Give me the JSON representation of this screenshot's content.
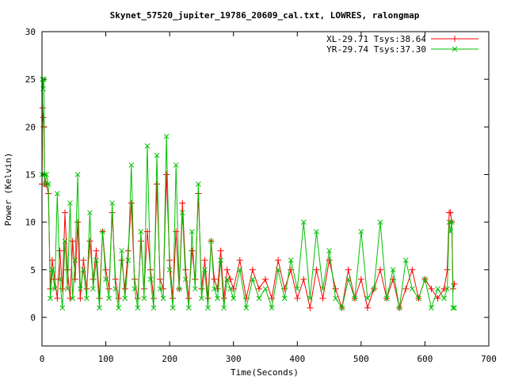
{
  "chart_data": {
    "type": "line",
    "title": "Skynet_57520_jupiter_19786_20609_cal.txt, LOWRES, ralongmap",
    "xlabel": "Time(Seconds)",
    "ylabel": "Power (Kelvin)",
    "xlim": [
      0,
      700
    ],
    "ylim": [
      -3,
      30
    ],
    "xticks": [
      0,
      100,
      200,
      300,
      400,
      500,
      600,
      700
    ],
    "yticks": [
      0,
      5,
      10,
      15,
      20,
      25,
      30
    ],
    "grid": false,
    "legend_position": "top-right",
    "series": [
      {
        "name": "XL-29.71 Tsys:38.64",
        "color": "#ff0000",
        "marker": "plus",
        "x": [
          0,
          1,
          2,
          3,
          4,
          5,
          7,
          10,
          13,
          16,
          20,
          24,
          28,
          32,
          36,
          40,
          44,
          48,
          52,
          56,
          60,
          65,
          70,
          75,
          80,
          85,
          90,
          95,
          100,
          105,
          110,
          115,
          120,
          125,
          130,
          135,
          140,
          145,
          150,
          155,
          160,
          165,
          170,
          175,
          180,
          185,
          190,
          195,
          200,
          205,
          210,
          215,
          220,
          225,
          230,
          235,
          240,
          245,
          250,
          255,
          260,
          265,
          270,
          275,
          280,
          285,
          290,
          295,
          300,
          310,
          320,
          330,
          340,
          350,
          360,
          370,
          380,
          390,
          400,
          410,
          420,
          430,
          440,
          450,
          460,
          470,
          480,
          490,
          500,
          510,
          520,
          530,
          540,
          550,
          560,
          570,
          580,
          590,
          600,
          610,
          620,
          630,
          635,
          638,
          640,
          642,
          644,
          646
        ],
        "values": [
          14,
          22,
          21,
          20,
          14,
          14,
          14,
          13,
          3,
          6,
          4,
          2,
          7,
          3,
          11,
          5,
          2,
          8,
          4,
          10,
          2,
          6,
          3,
          8,
          4,
          7,
          2,
          9,
          5,
          3,
          11,
          4,
          2,
          6,
          3,
          7,
          12,
          4,
          2,
          8,
          3,
          9,
          5,
          2,
          14,
          4,
          3,
          15,
          6,
          2,
          9,
          3,
          12,
          5,
          2,
          7,
          4,
          13,
          3,
          6,
          2,
          8,
          4,
          3,
          7,
          2,
          5,
          4,
          3,
          6,
          2,
          5,
          3,
          4,
          2,
          6,
          3,
          5,
          2,
          4,
          1,
          5,
          2,
          6,
          3,
          1,
          5,
          2,
          4,
          1,
          3,
          5,
          2,
          4,
          1,
          3,
          5,
          2,
          4,
          3,
          2,
          3,
          5,
          11,
          11,
          10,
          3,
          3.5
        ]
      },
      {
        "name": "YR-29.74 Tsys:37.30",
        "color": "#00c000",
        "marker": "cross",
        "x": [
          0,
          1,
          2,
          3,
          4,
          5,
          7,
          10,
          13,
          16,
          20,
          24,
          28,
          32,
          36,
          40,
          44,
          48,
          52,
          56,
          60,
          65,
          70,
          75,
          80,
          85,
          90,
          95,
          100,
          105,
          110,
          115,
          120,
          125,
          130,
          135,
          140,
          145,
          150,
          155,
          160,
          165,
          170,
          175,
          180,
          185,
          190,
          195,
          200,
          205,
          210,
          215,
          220,
          225,
          230,
          235,
          240,
          245,
          250,
          255,
          260,
          265,
          270,
          275,
          280,
          285,
          290,
          295,
          300,
          310,
          320,
          330,
          340,
          350,
          360,
          370,
          380,
          390,
          400,
          410,
          420,
          430,
          440,
          450,
          460,
          470,
          480,
          490,
          500,
          510,
          520,
          530,
          540,
          550,
          560,
          570,
          580,
          590,
          600,
          610,
          620,
          630,
          635,
          638,
          640,
          642,
          644,
          646
        ],
        "values": [
          15,
          25,
          24,
          25,
          15,
          14,
          15,
          14,
          2,
          5,
          3,
          13,
          4,
          1,
          8,
          3,
          12,
          2,
          6,
          15,
          3,
          5,
          2,
          11,
          3,
          6,
          1,
          9,
          4,
          2,
          12,
          3,
          1,
          7,
          2,
          6,
          16,
          3,
          1,
          9,
          2,
          18,
          4,
          1,
          17,
          3,
          2,
          19,
          5,
          1,
          16,
          3,
          11,
          4,
          1,
          9,
          3,
          14,
          2,
          5,
          1,
          8,
          3,
          2,
          6,
          1,
          4,
          3,
          2,
          5,
          1,
          4,
          2,
          3,
          1,
          5,
          2,
          6,
          3,
          10,
          2,
          9,
          3,
          7,
          2,
          1,
          4,
          2,
          9,
          2,
          3,
          10,
          2,
          5,
          1,
          6,
          3,
          2,
          4,
          1,
          3,
          2,
          3,
          10,
          9,
          10,
          1,
          1
        ]
      }
    ]
  }
}
